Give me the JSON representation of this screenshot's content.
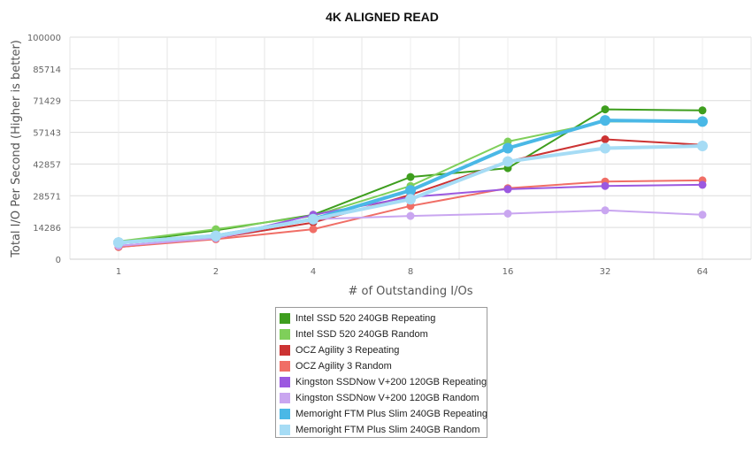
{
  "chart_data": {
    "type": "line",
    "title": "4K ALIGNED READ",
    "xlabel": "# of Outstanding I/Os",
    "ylabel": "Total I/O Per Second (Higher is better)",
    "x": [
      "1",
      "2",
      "4",
      "8",
      "16",
      "32",
      "64"
    ],
    "ylim": [
      0,
      100000
    ],
    "yticks": [
      0,
      14286,
      28571,
      42857,
      57143,
      71429,
      85714,
      100000
    ],
    "ytick_labels": [
      "0",
      "14286",
      "28571",
      "42857",
      "57143",
      "71429",
      "85714",
      "100000"
    ],
    "grid": true,
    "legend_position": "bottom",
    "series": [
      {
        "name": "Intel SSD 520 240GB Repeating",
        "color": "#3e9e1e",
        "width": 2,
        "marker": 4.5,
        "values": [
          7500,
          13000,
          20000,
          37000,
          41000,
          67500,
          67000
        ]
      },
      {
        "name": "Intel SSD 520 240GB Random",
        "color": "#7fcf5a",
        "width": 2,
        "marker": 4.5,
        "values": [
          8000,
          13500,
          19500,
          33000,
          53000,
          62000,
          62000
        ]
      },
      {
        "name": "OCZ Agility 3 Repeating",
        "color": "#cc3333",
        "width": 2,
        "marker": 4.5,
        "values": [
          5500,
          9500,
          16500,
          29000,
          44000,
          54000,
          51500
        ]
      },
      {
        "name": "OCZ Agility 3 Random",
        "color": "#f06e66",
        "width": 2,
        "marker": 4.5,
        "values": [
          5500,
          9000,
          13500,
          24000,
          32000,
          35000,
          35500
        ]
      },
      {
        "name": "Kingston SSDNow V+200 120GB Repeating",
        "color": "#9b59e0",
        "width": 2,
        "marker": 4.5,
        "values": [
          6000,
          9500,
          20000,
          28000,
          31500,
          33000,
          33500
        ]
      },
      {
        "name": "Kingston SSDNow V+200 120GB Random",
        "color": "#c9a6f0",
        "width": 2,
        "marker": 4.5,
        "values": [
          6000,
          9500,
          18000,
          19500,
          20500,
          22000,
          20000
        ]
      },
      {
        "name": "Memoright FTM Plus Slim 240GB Repeating",
        "color": "#4ab8e6",
        "width": 4,
        "marker": 6,
        "values": [
          7500,
          10500,
          18000,
          31000,
          50000,
          62500,
          62000
        ]
      },
      {
        "name": "Memoright FTM Plus Slim 240GB Random",
        "color": "#a6dcf5",
        "width": 4,
        "marker": 6,
        "values": [
          7500,
          10500,
          18000,
          27000,
          44000,
          50000,
          51000
        ]
      }
    ]
  }
}
